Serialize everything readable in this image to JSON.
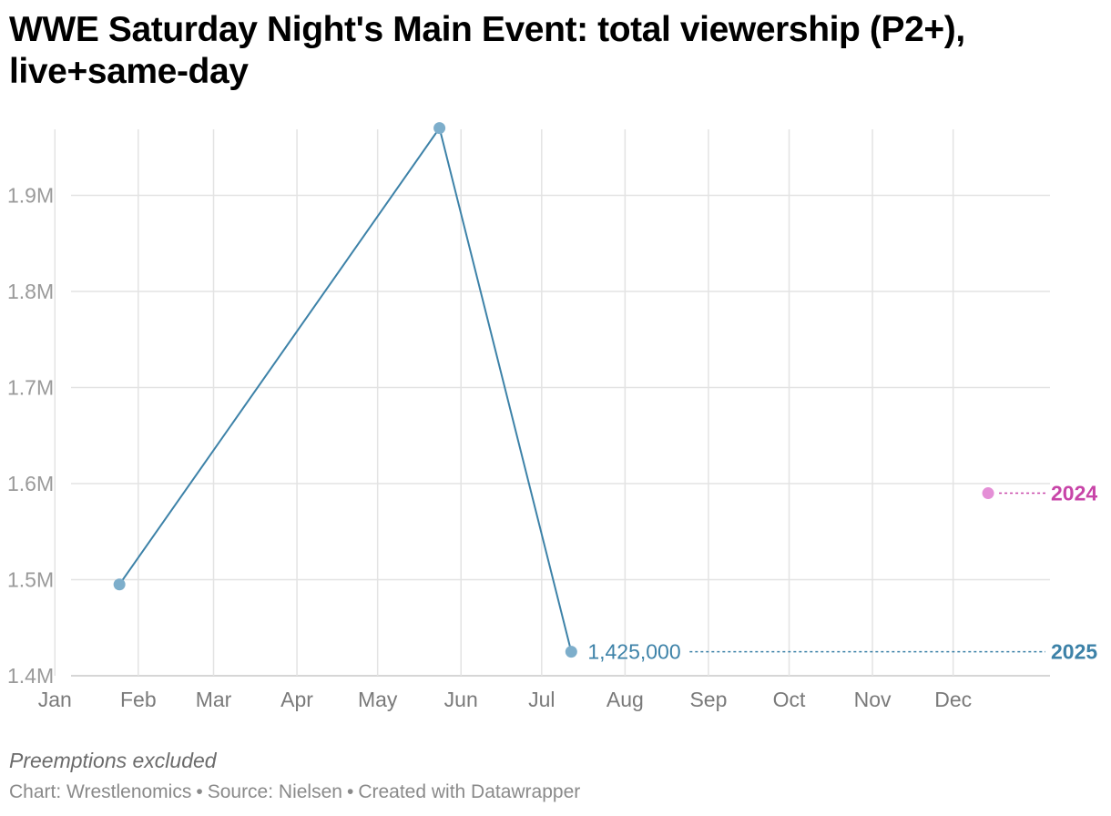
{
  "title": "WWE Saturday Night's Main Event: total viewership (P2+), live+same-day",
  "note": "Preemptions excluded",
  "footer": {
    "chart_credit": "Chart: Wrestlenomics",
    "source": "Source: Nielsen",
    "created_with": "Created with Datawrapper",
    "separator": "•"
  },
  "colors": {
    "series_2025": "#3d82a8",
    "series_2025_marker": "#7daecb",
    "series_2024": "#c845a8",
    "series_2024_marker": "#e48fd6",
    "grid": "#e3e3e3"
  },
  "chart_data": {
    "type": "line",
    "x_axis": {
      "type": "date",
      "ticks": [
        "Jan",
        "Feb",
        "Mar",
        "Apr",
        "May",
        "Jun",
        "Jul",
        "Aug",
        "Sep",
        "Oct",
        "Nov",
        "Dec"
      ],
      "range": [
        "Jan 1",
        "Dec 31"
      ]
    },
    "y_axis": {
      "ticks": [
        1400000,
        1500000,
        1600000,
        1700000,
        1800000,
        1900000
      ],
      "tick_labels": [
        "1.4M",
        "1.5M",
        "1.6M",
        "1.7M",
        "1.8M",
        "1.9M"
      ],
      "ylim": [
        1400000,
        1970000
      ]
    },
    "grid": true,
    "series": [
      {
        "name": "2025",
        "points": [
          {
            "date": "Jan 25",
            "value": 1495000
          },
          {
            "date": "May 24",
            "value": 1970000
          },
          {
            "date": "Jul 12",
            "value": 1425000
          }
        ],
        "end_label": "1,425,000",
        "line": true
      },
      {
        "name": "2024",
        "points": [
          {
            "date": "Dec 14",
            "value": 1590000
          }
        ],
        "line": false
      }
    ]
  }
}
